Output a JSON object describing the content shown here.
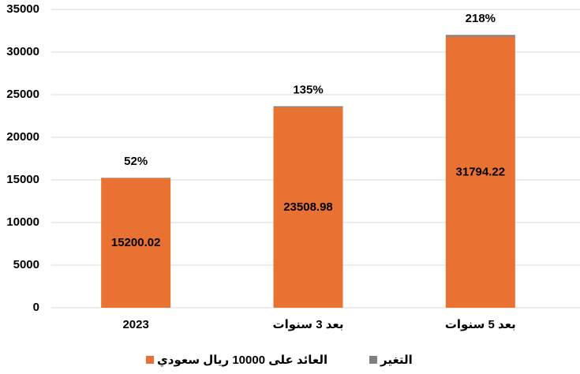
{
  "chart_data": {
    "type": "stacked_bar",
    "categories": [
      "2023",
      "بعد 3 سنوات",
      "بعد 5 سنوات"
    ],
    "series": [
      {
        "name": "العائد على 10000 ريال سعودي",
        "color": "#e97132",
        "values": [
          15200.02,
          23508.98,
          31794.22
        ]
      },
      {
        "name": "التغير",
        "color": "#808080",
        "values": [
          52,
          135,
          218
        ],
        "value_labels": [
          "52%",
          "135%",
          "218%"
        ]
      }
    ],
    "ylim": [
      0,
      35000
    ],
    "yticks": [
      0,
      5000,
      10000,
      15000,
      20000,
      25000,
      30000,
      35000
    ],
    "grid": true
  }
}
